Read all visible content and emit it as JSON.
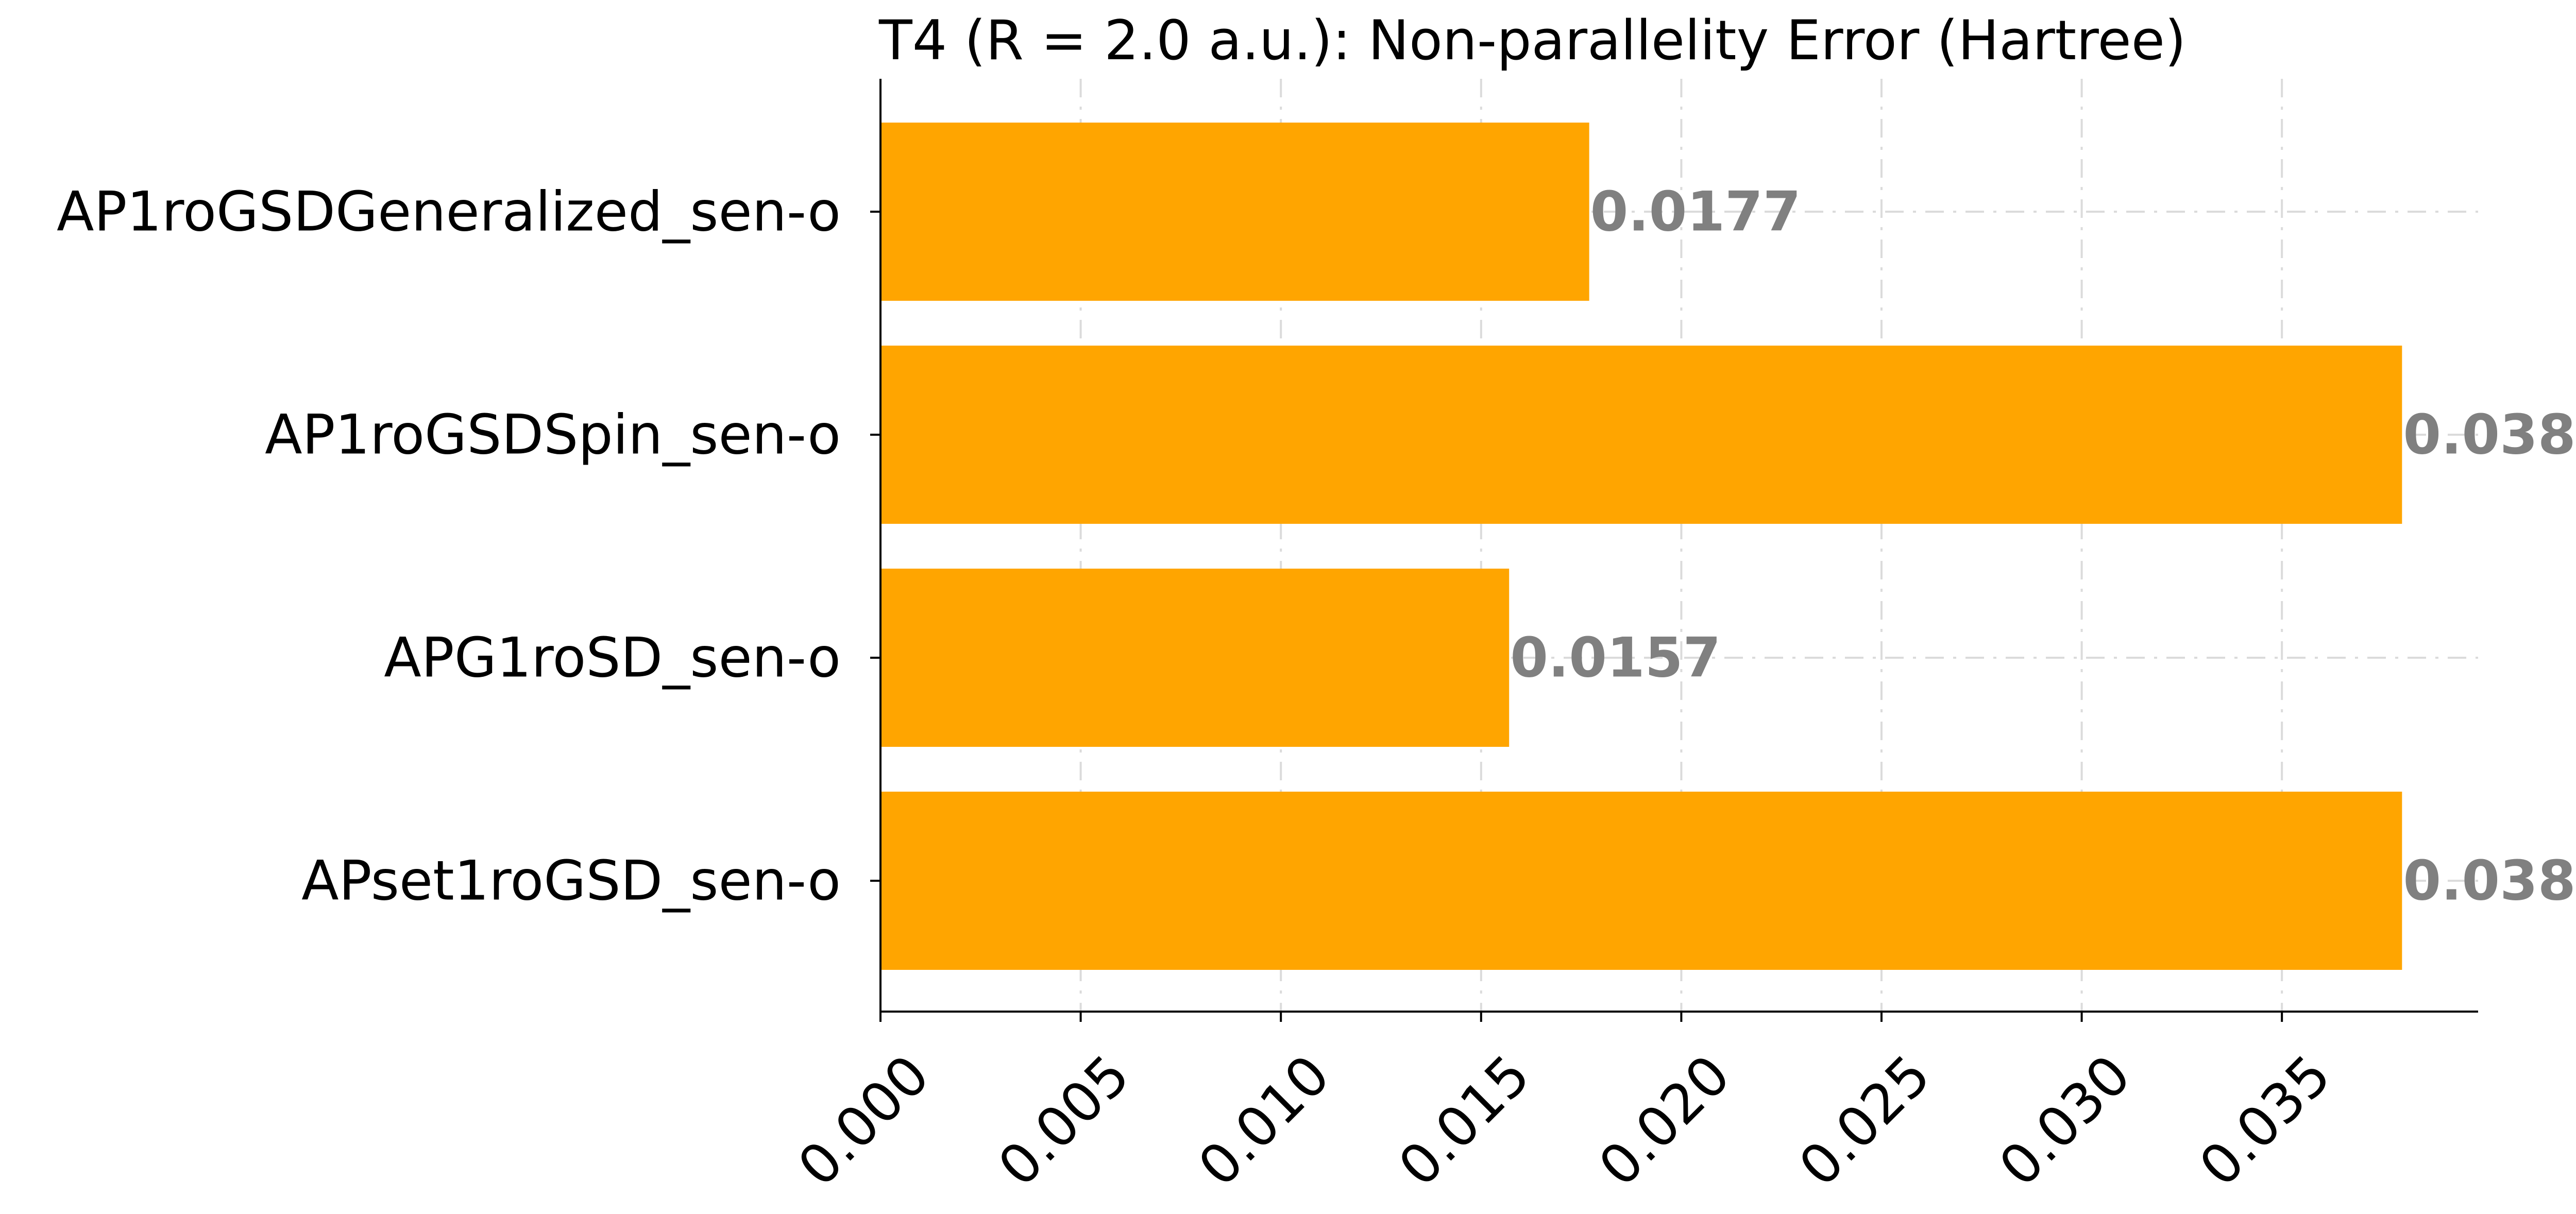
{
  "chart_data": {
    "type": "bar",
    "orientation": "horizontal",
    "title": "T4 (R = 2.0 a.u.): Non-parallelity Error (Hartree)",
    "xlabel": "",
    "ylabel": "",
    "categories": [
      "AP1roGSDGeneralized_sen-o",
      "AP1roGSDSpin_sen-o",
      "APG1roSD_sen-o",
      "APset1roGSD_sen-o"
    ],
    "values": [
      0.0177,
      0.038,
      0.0157,
      0.038
    ],
    "value_labels": [
      "0.0177",
      "0.038",
      "0.0157",
      "0.038"
    ],
    "xlim": [
      0,
      0.0399
    ],
    "xticks": [
      0.0,
      0.005,
      0.01,
      0.015,
      0.02,
      0.025,
      0.03,
      0.035
    ],
    "xtick_labels": [
      "0.000",
      "0.005",
      "0.010",
      "0.015",
      "0.020",
      "0.025",
      "0.030",
      "0.035"
    ],
    "grid": true,
    "legend": "none",
    "bar_color": "#FFA500",
    "value_label_color": "#808080"
  }
}
